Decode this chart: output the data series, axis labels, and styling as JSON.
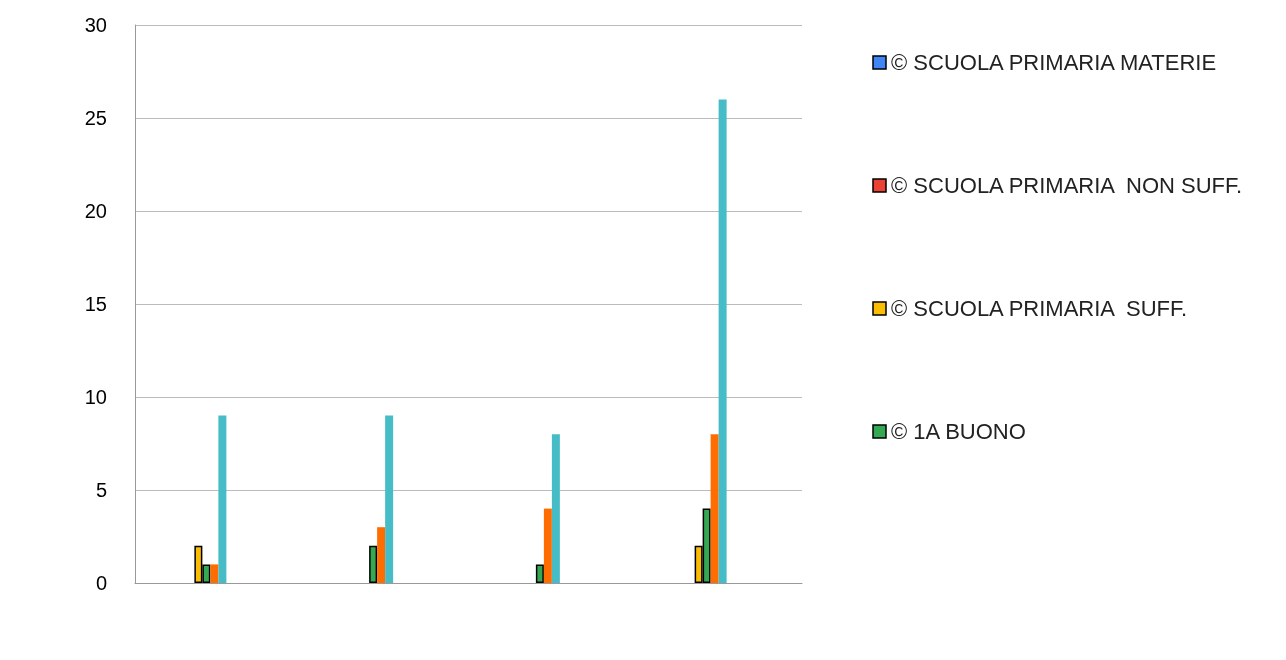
{
  "chart_data": {
    "type": "bar",
    "categories": [
      null,
      null,
      null,
      null
    ],
    "series": [
      {
        "name": "© SCUOLA PRIMARIA MATERIE",
        "color": "#4285f4",
        "values": [
          null,
          null,
          null,
          null
        ]
      },
      {
        "name": "© SCUOLA PRIMARIA  NON SUFF.",
        "color": "#ea4335",
        "values": [
          null,
          null,
          null,
          null
        ]
      },
      {
        "name": "© SCUOLA PRIMARIA  SUFF.",
        "color": "#fbbc04",
        "values": [
          2,
          null,
          null,
          2
        ]
      },
      {
        "name": "© 1A BUONO",
        "color": "#34a853",
        "values": [
          1,
          2,
          1,
          4
        ]
      },
      {
        "color": "#ff6d01",
        "values": [
          1,
          3,
          4,
          8
        ]
      },
      {
        "color": "#46bdc6",
        "values": [
          9,
          9,
          8,
          26
        ]
      }
    ],
    "ylim": [
      0,
      30
    ],
    "yticks": [
      0,
      5,
      10,
      15,
      20,
      25,
      30
    ],
    "grid": "y",
    "legend": "right"
  }
}
